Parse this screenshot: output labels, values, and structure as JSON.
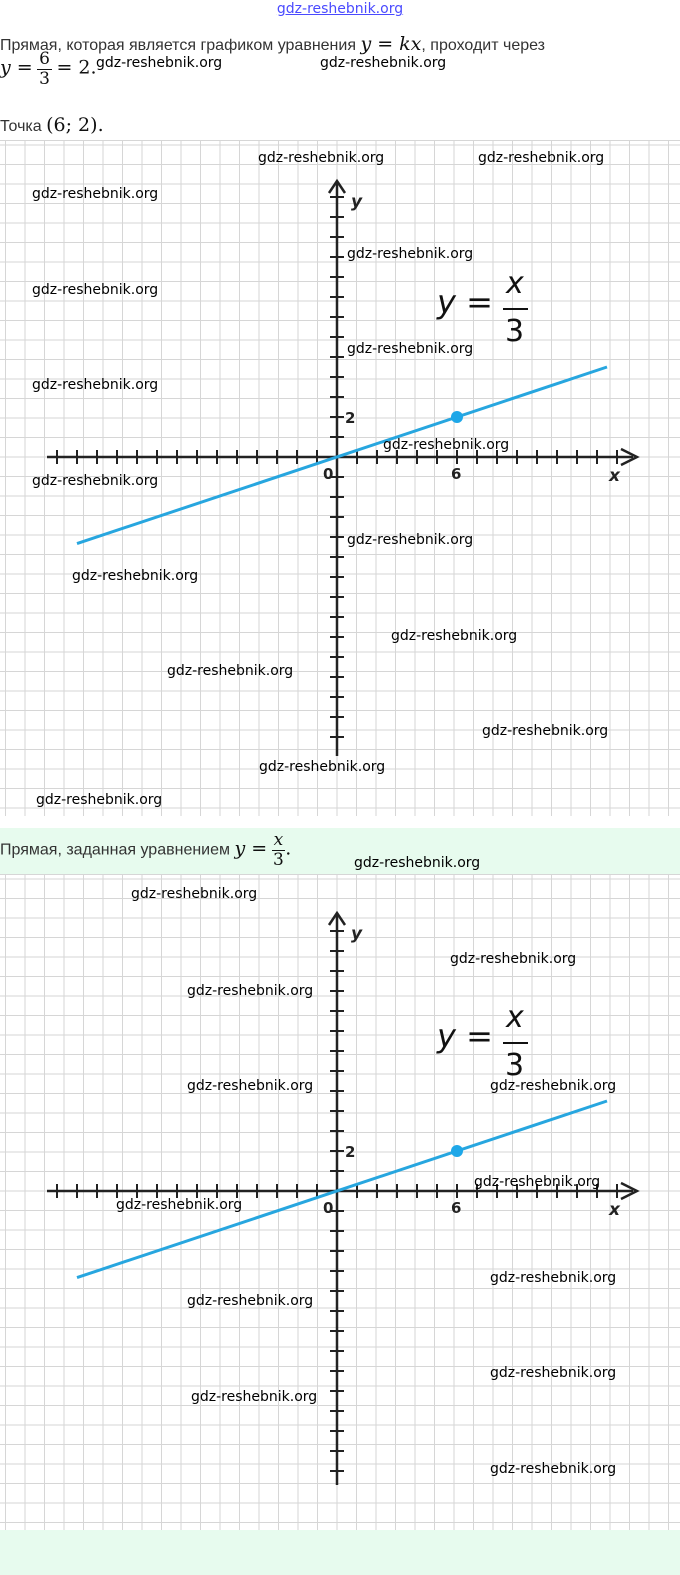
{
  "watermark": "gdz-reshebnik.org",
  "header_watermark": "gdz-reshebnik.org",
  "para1": {
    "text_before": "Прямая, которая является графиком уравнения",
    "math_eq": "y = kx",
    "text_after": ", проходит через",
    "calc_lhs": "y =",
    "calc_num": "6",
    "calc_den": "3",
    "calc_rhs": "= 2",
    "calc_end": "."
  },
  "point_line": {
    "text": "Точка",
    "math": "(6;  2)",
    "end": "."
  },
  "caption2": {
    "text": "Прямая, заданная уравнением",
    "lhs": "y =",
    "num": "x",
    "den": "3",
    "end": "."
  },
  "graph": {
    "x_label": "x",
    "y_label": "y",
    "origin_label": "0",
    "tick_x_label": "6",
    "tick_y_label": "2",
    "eq_lhs": "y =",
    "eq_num": "x",
    "eq_den": "3"
  },
  "colors": {
    "line": "#27a6df",
    "point": "#1ea7e8",
    "axis": "#222222",
    "grid": "#d6d6d6",
    "band": "#e7fbee",
    "link": "#4a4aff"
  },
  "chart_data": [
    {
      "type": "line",
      "title": "",
      "equation": "y = x/3",
      "xlabel": "x",
      "ylabel": "y",
      "xlim": [
        -14,
        14
      ],
      "ylim": [
        -14,
        13
      ],
      "x": [
        -13,
        13.5
      ],
      "series": [
        {
          "values": [
            -4.33,
            4.5
          ]
        }
      ],
      "highlight_point": [
        6,
        2
      ],
      "tick_labels": {
        "x": [
          "0",
          "6"
        ],
        "y": [
          "2"
        ]
      },
      "grid": true
    },
    {
      "type": "line",
      "title": "",
      "equation": "y = x/3",
      "xlabel": "x",
      "ylabel": "y",
      "xlim": [
        -14,
        14
      ],
      "ylim": [
        -14,
        13
      ],
      "x": [
        -13,
        13.5
      ],
      "series": [
        {
          "values": [
            -4.33,
            4.5
          ]
        }
      ],
      "highlight_point": [
        6,
        2
      ],
      "tick_labels": {
        "x": [
          "0",
          "6"
        ],
        "y": [
          "2"
        ]
      },
      "grid": true
    }
  ]
}
